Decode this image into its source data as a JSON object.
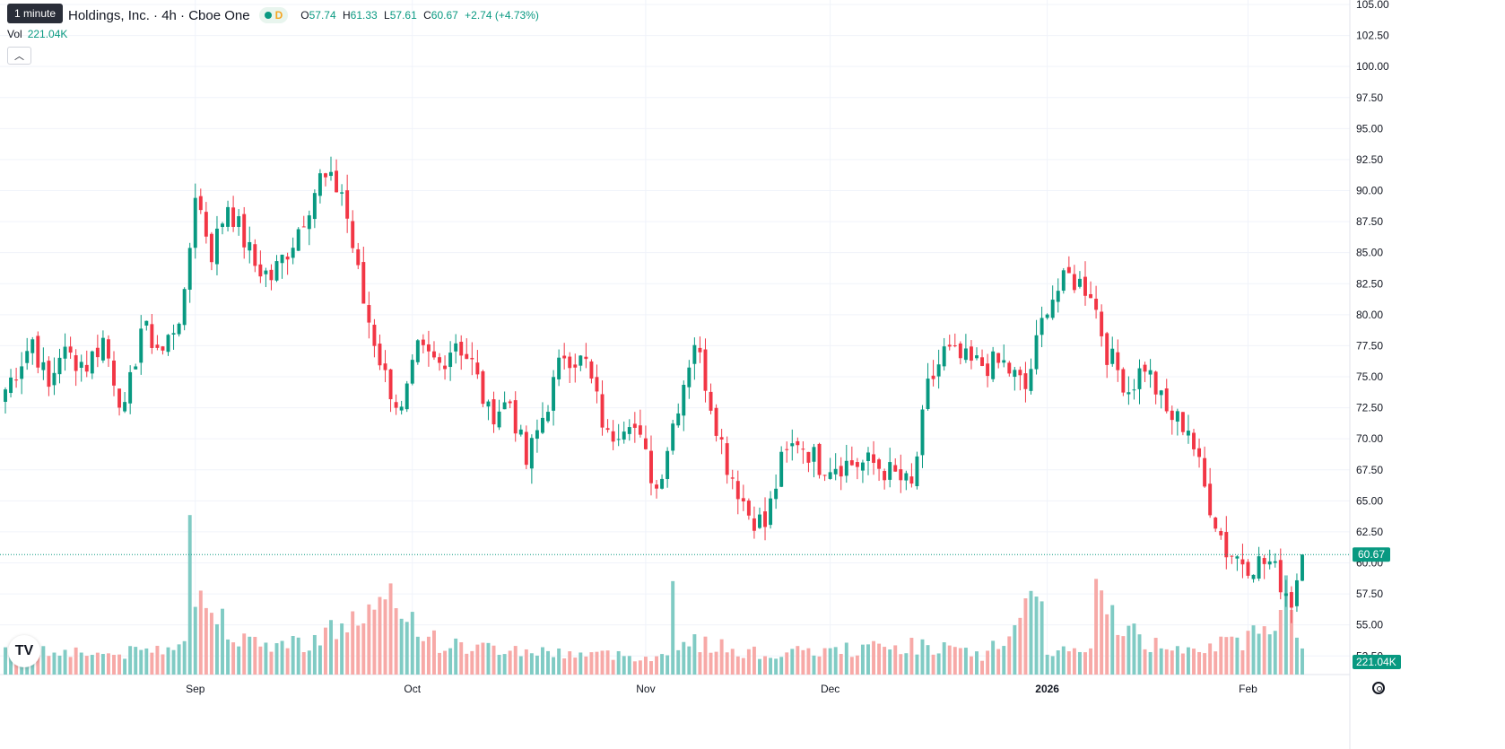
{
  "legend": {
    "tooltip": "1 minute",
    "symbol": "Holdings, Inc. · 4h · Cboe One",
    "badge_d": "D",
    "o_label": "O",
    "o_value": "57.74",
    "h_label": "H",
    "h_value": "61.33",
    "l_label": "L",
    "l_value": "57.61",
    "c_label": "C",
    "c_value": "60.67",
    "change": "+2.74 (+4.73%)",
    "vol_label": "Vol",
    "vol_value": "221.04K"
  },
  "price_label": "60.67",
  "volume_label": "221.04K",
  "colors": {
    "up": "#089981",
    "down": "#f23645",
    "up_vol": "#80cbc4",
    "down_vol": "#f7a9a7"
  },
  "chart_data": {
    "type": "candlestick",
    "ylim": [
      51,
      105
    ],
    "yticks": [
      52.5,
      55.0,
      57.5,
      60.0,
      62.5,
      65.0,
      67.5,
      70.0,
      72.5,
      75.0,
      77.5,
      80.0,
      82.5,
      85.0,
      87.5,
      90.0,
      92.5,
      95.0,
      97.5,
      100.0,
      102.5,
      105.0
    ],
    "ytick_labels": [
      "52.50",
      "55.00",
      "57.50",
      "60.00",
      "62.50",
      "65.00",
      "67.50",
      "70.00",
      "72.50",
      "75.00",
      "77.50",
      "80.00",
      "82.50",
      "85.00",
      "87.50",
      "90.00",
      "92.50",
      "95.00",
      "97.50",
      "100.00",
      "102.50",
      "105.00"
    ],
    "xticks": [
      "Sep",
      "Oct",
      "Nov",
      "Dec",
      "2026",
      "Feb"
    ],
    "xtick_bold": [
      false,
      false,
      false,
      false,
      true,
      false
    ],
    "xtick_index": [
      35,
      75,
      118,
      152,
      192,
      229
    ],
    "last_close": 60.67,
    "knots": [
      [
        0,
        74
      ],
      [
        5,
        78
      ],
      [
        8,
        74
      ],
      [
        10,
        77
      ],
      [
        15,
        76
      ],
      [
        18,
        78
      ],
      [
        22,
        72
      ],
      [
        25,
        79
      ],
      [
        29,
        77
      ],
      [
        33,
        81
      ],
      [
        35,
        90
      ],
      [
        38,
        85
      ],
      [
        41,
        89
      ],
      [
        46,
        84
      ],
      [
        49,
        83
      ],
      [
        53,
        86
      ],
      [
        58,
        91
      ],
      [
        62,
        90
      ],
      [
        66,
        81
      ],
      [
        70,
        75
      ],
      [
        73,
        72
      ],
      [
        76,
        77
      ],
      [
        80,
        76
      ],
      [
        83,
        78
      ],
      [
        86,
        76
      ],
      [
        89,
        72
      ],
      [
        93,
        73
      ],
      [
        96,
        68
      ],
      [
        100,
        73
      ],
      [
        103,
        77
      ],
      [
        107,
        76
      ],
      [
        111,
        70
      ],
      [
        115,
        72
      ],
      [
        120,
        66
      ],
      [
        124,
        73
      ],
      [
        127,
        78
      ],
      [
        130,
        73
      ],
      [
        133,
        68
      ],
      [
        137,
        64
      ],
      [
        140,
        63
      ],
      [
        143,
        68
      ],
      [
        146,
        70
      ],
      [
        150,
        68
      ],
      [
        155,
        68
      ],
      [
        160,
        68
      ],
      [
        164,
        67
      ],
      [
        167,
        66
      ],
      [
        170,
        74
      ],
      [
        173,
        77
      ],
      [
        178,
        76
      ],
      [
        184,
        76
      ],
      [
        188,
        74
      ],
      [
        192,
        81
      ],
      [
        196,
        83
      ],
      [
        200,
        82
      ],
      [
        203,
        77
      ],
      [
        207,
        74
      ],
      [
        210,
        76
      ],
      [
        214,
        72
      ],
      [
        218,
        71
      ],
      [
        221,
        66
      ],
      [
        225,
        61
      ],
      [
        229,
        60
      ],
      [
        233,
        60
      ],
      [
        237,
        57
      ],
      [
        239,
        60.67
      ]
    ],
    "volume_max": 66000,
    "volume_knots": [
      [
        0,
        9000
      ],
      [
        10,
        10000
      ],
      [
        20,
        8000
      ],
      [
        30,
        11000
      ],
      [
        33,
        18000
      ],
      [
        34,
        66000
      ],
      [
        35,
        30000
      ],
      [
        39,
        25000
      ],
      [
        45,
        12000
      ],
      [
        55,
        13000
      ],
      [
        72,
        29000
      ],
      [
        80,
        12000
      ],
      [
        100,
        9000
      ],
      [
        122,
        7000
      ],
      [
        123,
        41000
      ],
      [
        124,
        14000
      ],
      [
        140,
        8000
      ],
      [
        170,
        12000
      ],
      [
        180,
        7000
      ],
      [
        191,
        30000
      ],
      [
        192,
        10000
      ],
      [
        200,
        9000
      ],
      [
        201,
        31000
      ],
      [
        210,
        12000
      ],
      [
        225,
        12000
      ],
      [
        233,
        18000
      ],
      [
        236,
        37000
      ],
      [
        239,
        11000
      ]
    ],
    "bars": 240
  }
}
